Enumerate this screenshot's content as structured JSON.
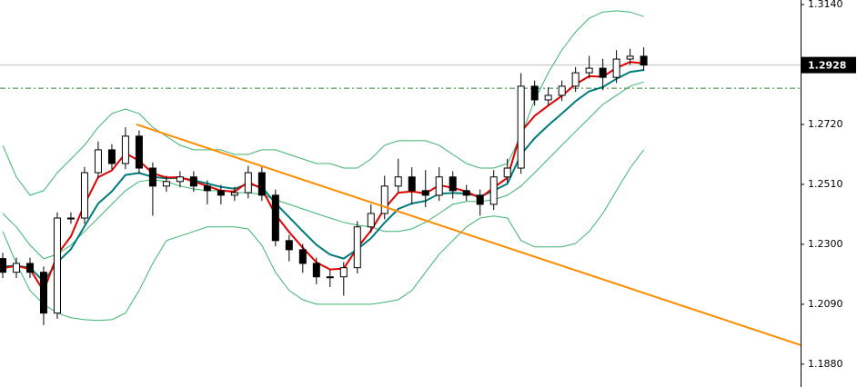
{
  "chart_data": {
    "type": "candlestick",
    "xlim": [
      -0.2,
      58.5
    ],
    "ylim": [
      1.18,
      1.3156
    ],
    "yticks": [
      {
        "value": 1.314,
        "label": "1.3140"
      },
      {
        "value": 1.272,
        "label": "1.2720"
      },
      {
        "value": 1.251,
        "label": "1.2510"
      },
      {
        "value": 1.23,
        "label": "1.2300"
      },
      {
        "value": 1.209,
        "label": "1.2090"
      },
      {
        "value": 1.188,
        "label": "1.1880"
      }
    ],
    "up_color": "#ffffff",
    "down_color": "#000000",
    "candles": {
      "open": [
        1.225,
        1.2202,
        1.2233,
        1.2202,
        1.2059,
        1.2392,
        1.2392,
        1.2551,
        1.2631,
        1.2583,
        1.2679,
        1.2567,
        1.2504,
        1.252,
        1.2536,
        1.2504,
        1.2488,
        1.2472,
        1.2481,
        1.2551,
        1.2472,
        1.2313,
        1.2281,
        1.2233,
        1.2186,
        1.2186,
        1.2218,
        1.2361,
        1.2408,
        1.2504,
        1.2536,
        1.2488,
        1.2472,
        1.2536,
        1.2488,
        1.2472,
        1.244,
        1.2536,
        1.2567,
        1.2854,
        1.2806,
        1.2822,
        1.2854,
        1.2901,
        1.2917,
        1.2885,
        1.2949,
        1.2959
      ],
      "high": [
        1.227,
        1.2253,
        1.2253,
        1.2222,
        1.2412,
        1.2412,
        1.2571,
        1.266,
        1.2651,
        1.271,
        1.2699,
        1.2587,
        1.254,
        1.2556,
        1.2556,
        1.2524,
        1.2508,
        1.2501,
        1.2575,
        1.2571,
        1.2492,
        1.2333,
        1.2301,
        1.2253,
        1.221,
        1.2238,
        1.2381,
        1.244,
        1.254,
        1.26,
        1.257,
        1.256,
        1.257,
        1.2556,
        1.2508,
        1.2492,
        1.256,
        1.26,
        1.29,
        1.2874,
        1.285,
        1.2874,
        1.2921,
        1.296,
        1.295,
        1.298,
        1.2985,
        1.299
      ],
      "low": [
        1.2182,
        1.2182,
        1.2182,
        1.2017,
        1.2039,
        1.2372,
        1.2372,
        1.2531,
        1.2563,
        1.2563,
        1.2547,
        1.24,
        1.2484,
        1.25,
        1.2484,
        1.244,
        1.244,
        1.2452,
        1.2461,
        1.2452,
        1.2293,
        1.224,
        1.22,
        1.216,
        1.215,
        1.212,
        1.2198,
        1.2341,
        1.2388,
        1.2484,
        1.244,
        1.243,
        1.2452,
        1.246,
        1.2452,
        1.24,
        1.242,
        1.2516,
        1.2547,
        1.2786,
        1.2786,
        1.2802,
        1.2834,
        1.2881,
        1.284,
        1.2865,
        1.2929,
        1.2908
      ],
      "close": [
        1.2202,
        1.2233,
        1.2202,
        1.2059,
        1.2392,
        1.2392,
        1.2551,
        1.2631,
        1.2583,
        1.2679,
        1.2567,
        1.2504,
        1.252,
        1.2536,
        1.2504,
        1.2488,
        1.2472,
        1.2481,
        1.2551,
        1.2472,
        1.2313,
        1.2281,
        1.2233,
        1.2186,
        1.2186,
        1.2218,
        1.2361,
        1.2408,
        1.2504,
        1.2536,
        1.2488,
        1.2472,
        1.2536,
        1.2488,
        1.2472,
        1.244,
        1.2536,
        1.2567,
        1.2854,
        1.2806,
        1.2822,
        1.2854,
        1.2901,
        1.2917,
        1.2885,
        1.2949,
        1.2959,
        1.2928
      ]
    },
    "lines": [
      {
        "color": "#3cb371",
        "width": 1,
        "values": [
          1.2647,
          1.2536,
          1.2472,
          1.2488,
          1.2551,
          1.2599,
          1.2647,
          1.271,
          1.2758,
          1.2774,
          1.2758,
          1.271,
          1.2679,
          1.2647,
          1.2631,
          1.2631,
          1.2631,
          1.2615,
          1.2615,
          1.2631,
          1.2631,
          1.2615,
          1.2599,
          1.2583,
          1.2583,
          1.2567,
          1.2567,
          1.2599,
          1.2647,
          1.2663,
          1.2663,
          1.2663,
          1.2647,
          1.2615,
          1.2583,
          1.2567,
          1.2567,
          1.2583,
          1.2679,
          1.2806,
          1.2901,
          1.2981,
          1.3044,
          1.3092,
          1.3114,
          1.3118,
          1.3114,
          1.3098
        ]
      },
      {
        "color": "#3cb371",
        "width": 1,
        "values": [
          1.2408,
          1.2361,
          1.2297,
          1.2249,
          1.2265,
          1.2297,
          1.2345,
          1.2392,
          1.244,
          1.2488,
          1.252,
          1.2526,
          1.252,
          1.2504,
          1.2494,
          1.2488,
          1.2488,
          1.2481,
          1.2481,
          1.2475,
          1.2456,
          1.244,
          1.2424,
          1.2408,
          1.2392,
          1.2377,
          1.2367,
          1.2361,
          1.2345,
          1.2345,
          1.2354,
          1.2377,
          1.2408,
          1.244,
          1.245,
          1.245,
          1.2456,
          1.2472,
          1.2504,
          1.2551,
          1.2599,
          1.2647,
          1.2695,
          1.2742,
          1.279,
          1.2822,
          1.2854,
          1.2869
        ]
      },
      {
        "color": "#3cb371",
        "width": 1,
        "values": [
          1.2345,
          1.2233,
          1.2138,
          1.209,
          1.2059,
          1.2043,
          1.2036,
          1.2033,
          1.2036,
          1.2059,
          1.2138,
          1.2233,
          1.2313,
          1.2329,
          1.2345,
          1.2361,
          1.2361,
          1.2361,
          1.2354,
          1.2297,
          1.2202,
          1.2138,
          1.2106,
          1.209,
          1.209,
          1.209,
          1.209,
          1.209,
          1.2097,
          1.2106,
          1.2138,
          1.2202,
          1.2265,
          1.2313,
          1.2361,
          1.2392,
          1.2399,
          1.2392,
          1.2313,
          1.2291,
          1.2291,
          1.2291,
          1.2303,
          1.2345,
          1.2408,
          1.2488,
          1.2567,
          1.2631
        ]
      },
      {
        "color": "#007b7b",
        "width": 2,
        "values": [
          1.2222,
          1.2225,
          1.2218,
          1.217,
          1.2237,
          1.2283,
          1.2363,
          1.2443,
          1.2485,
          1.2543,
          1.255,
          1.2536,
          1.2531,
          1.2533,
          1.2524,
          1.2513,
          1.2501,
          1.2495,
          1.2512,
          1.25,
          1.2444,
          1.2395,
          1.2346,
          1.2298,
          1.2264,
          1.225,
          1.2283,
          1.2321,
          1.2376,
          1.2424,
          1.2443,
          1.2452,
          1.2477,
          1.248,
          1.2478,
          1.2467,
          1.2488,
          1.2512,
          1.2615,
          1.2672,
          1.2717,
          1.2758,
          1.2801,
          1.2836,
          1.2851,
          1.288,
          1.2904,
          1.2911
        ]
      },
      {
        "color": "#e00000",
        "width": 2,
        "values": [
          1.2216,
          1.2225,
          1.2213,
          1.2136,
          1.2264,
          1.2328,
          1.244,
          1.2535,
          1.2559,
          1.2619,
          1.2593,
          1.2549,
          1.2534,
          1.2535,
          1.252,
          1.2504,
          1.2488,
          1.2485,
          1.2518,
          1.2495,
          1.2404,
          1.2343,
          1.2288,
          1.2237,
          1.2212,
          1.2215,
          1.2288,
          1.2348,
          1.2426,
          1.2481,
          1.2485,
          1.2478,
          1.2507,
          1.2498,
          1.2485,
          1.2462,
          1.2499,
          1.2533,
          1.2694,
          1.275,
          1.2786,
          1.282,
          1.2861,
          1.2889,
          1.2887,
          1.2918,
          1.2939,
          1.2934
        ]
      }
    ],
    "trendline": {
      "color": "#ff8c00",
      "x": [
        9.8,
        58.5
      ],
      "values": [
        1.272,
        1.1947
      ]
    },
    "levels": [
      {
        "value": 1.2847,
        "color": "#2e7d32"
      }
    ],
    "last_price": {
      "value": 1.2928,
      "color": "#c0c0c0"
    }
  }
}
